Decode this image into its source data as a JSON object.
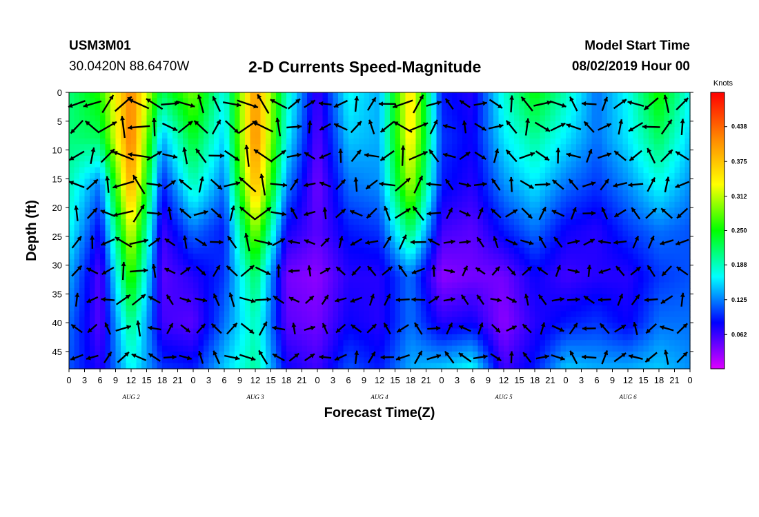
{
  "header": {
    "station_id": "USM3M01",
    "coords": "30.0420N 88.6470W",
    "title": "2-D Currents Speed-Magnitude",
    "start_label": "Model Start Time",
    "start_value": "08/02/2019 Hour 00"
  },
  "chart_data": {
    "type": "heatmap",
    "xlabel": "Forecast Time(Z)",
    "ylabel": "Depth (ft)",
    "x_tick_labels": [
      "0",
      "3",
      "6",
      "9",
      "12",
      "15",
      "18",
      "21",
      "0",
      "3",
      "6",
      "9",
      "12",
      "15",
      "18",
      "21",
      "0",
      "3",
      "6",
      "9",
      "12",
      "15",
      "18",
      "21",
      "0",
      "3",
      "6",
      "9",
      "12",
      "15",
      "18",
      "21",
      "0",
      "3",
      "6",
      "9",
      "12",
      "15",
      "18",
      "21",
      "0"
    ],
    "day_labels": [
      "AUG 2",
      "AUG 3",
      "AUG 4",
      "AUG 5",
      "AUG 6"
    ],
    "xlim_hours": [
      0,
      120
    ],
    "y_ticks": [
      0,
      5,
      10,
      15,
      20,
      25,
      30,
      35,
      40,
      45
    ],
    "ylim": [
      0,
      48
    ],
    "y_inverted": true,
    "colorbar": {
      "units_label": "Knots",
      "tick_labels": [
        "0.438",
        "0.375",
        "0.312",
        "0.250",
        "0.188",
        "0.125",
        "0.062"
      ],
      "tick_values": [
        0.438,
        0.375,
        0.312,
        0.25,
        0.188,
        0.125,
        0.062
      ],
      "range": [
        0,
        0.5
      ],
      "colors": [
        "#dd00ff",
        "#0000ff",
        "#00ffff",
        "#00ff00",
        "#ffff00",
        "#ff8800",
        "#ff0000"
      ]
    },
    "speed_grid": {
      "hours": [
        0,
        6,
        12,
        18,
        24,
        30,
        36,
        42,
        48,
        54,
        60,
        66,
        72,
        78,
        84,
        90,
        96,
        102,
        108,
        114,
        120
      ],
      "depths": [
        0,
        8,
        16,
        24,
        32,
        40,
        48
      ],
      "values": [
        [
          0.21,
          0.21,
          0.19,
          0.17,
          0.14,
          0.12,
          0.11
        ],
        [
          0.26,
          0.22,
          0.12,
          0.08,
          0.05,
          0.05,
          0.07
        ],
        [
          0.42,
          0.43,
          0.4,
          0.33,
          0.27,
          0.21,
          0.17
        ],
        [
          0.22,
          0.14,
          0.09,
          0.06,
          0.05,
          0.06,
          0.1
        ],
        [
          0.29,
          0.24,
          0.19,
          0.12,
          0.07,
          0.05,
          0.09
        ],
        [
          0.17,
          0.15,
          0.12,
          0.09,
          0.1,
          0.12,
          0.15
        ],
        [
          0.41,
          0.42,
          0.39,
          0.3,
          0.22,
          0.19,
          0.2
        ],
        [
          0.19,
          0.17,
          0.13,
          0.08,
          0.04,
          0.05,
          0.08
        ],
        [
          0.06,
          0.05,
          0.04,
          0.05,
          0.03,
          0.04,
          0.06
        ],
        [
          0.17,
          0.15,
          0.12,
          0.09,
          0.07,
          0.08,
          0.11
        ],
        [
          0.14,
          0.14,
          0.13,
          0.1,
          0.07,
          0.07,
          0.09
        ],
        [
          0.36,
          0.35,
          0.31,
          0.22,
          0.12,
          0.12,
          0.14
        ],
        [
          0.09,
          0.1,
          0.09,
          0.06,
          0.03,
          0.07,
          0.15
        ],
        [
          0.07,
          0.08,
          0.07,
          0.05,
          0.04,
          0.08,
          0.17
        ],
        [
          0.18,
          0.16,
          0.13,
          0.09,
          0.04,
          0.03,
          0.06
        ],
        [
          0.25,
          0.2,
          0.16,
          0.12,
          0.08,
          0.07,
          0.09
        ],
        [
          0.19,
          0.16,
          0.12,
          0.08,
          0.06,
          0.09,
          0.15
        ],
        [
          0.12,
          0.12,
          0.1,
          0.07,
          0.07,
          0.1,
          0.14
        ],
        [
          0.17,
          0.16,
          0.13,
          0.1,
          0.07,
          0.08,
          0.14
        ],
        [
          0.26,
          0.22,
          0.17,
          0.12,
          0.1,
          0.12,
          0.15
        ],
        [
          0.17,
          0.15,
          0.13,
          0.11,
          0.11,
          0.12,
          0.13
        ]
      ]
    },
    "vector_arrows": {
      "depths": [
        2,
        6,
        11,
        16,
        21,
        26,
        31,
        36,
        41,
        46
      ],
      "hour_step": 3,
      "note_direction_pattern": "tidal"
    }
  }
}
